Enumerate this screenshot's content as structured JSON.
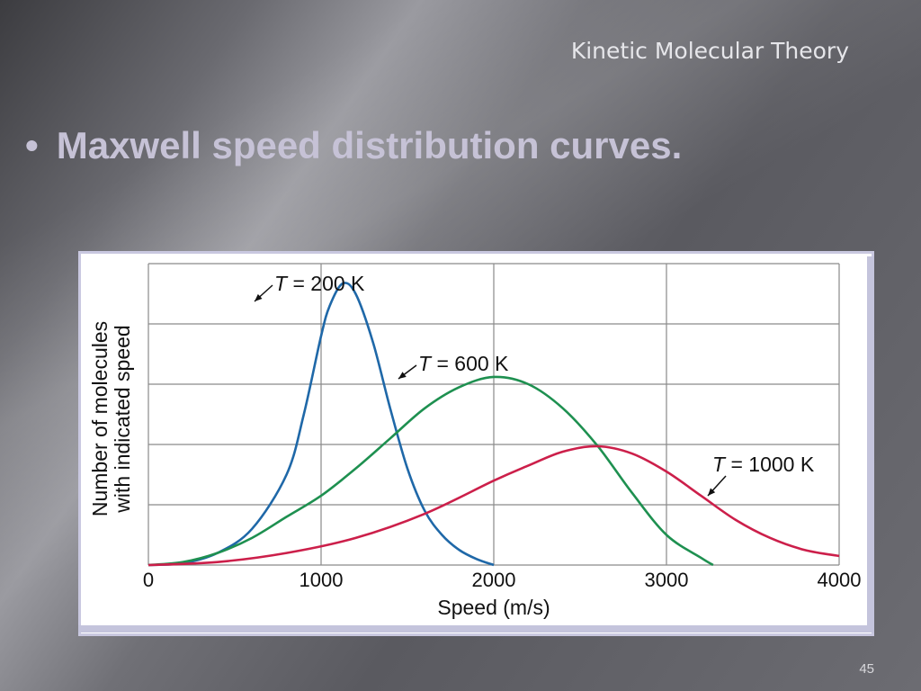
{
  "slide": {
    "title": "Kinetic Molecular Theory",
    "bullet": "Maxwell speed distribution curves.",
    "page_number": "45"
  },
  "chart_data": {
    "type": "line",
    "title": "",
    "xlabel": "Speed (m/s)",
    "ylabel_lines": [
      "Number of molecules",
      "with indicated speed"
    ],
    "xlim": [
      0,
      4000
    ],
    "ylim": [
      0,
      5
    ],
    "xticks": [
      0,
      1000,
      2000,
      3000,
      4000
    ],
    "xtick_labels": [
      "0",
      "1000",
      "2000",
      "3000",
      "4000"
    ],
    "yticks": [
      0,
      1,
      2,
      3,
      4,
      5
    ],
    "grid": true,
    "series": [
      {
        "name": "T = 200 K",
        "label_T": "T",
        "label_rest": " = 200 K",
        "color": "#1f68a8",
        "x": [
          0,
          200,
          400,
          600,
          800,
          900,
          1000,
          1050,
          1125,
          1200,
          1300,
          1400,
          1500,
          1600,
          1700,
          1800,
          1900,
          2000
        ],
        "y": [
          0,
          0.03,
          0.2,
          0.6,
          1.5,
          2.5,
          3.8,
          4.3,
          4.67,
          4.5,
          3.7,
          2.6,
          1.6,
          0.9,
          0.5,
          0.25,
          0.1,
          0
        ]
      },
      {
        "name": "T = 600 K",
        "label_T": "T",
        "label_rest": " = 600 K",
        "color": "#1e9050",
        "x": [
          0,
          200,
          400,
          600,
          800,
          1000,
          1200,
          1400,
          1600,
          1800,
          2000,
          2200,
          2400,
          2600,
          2800,
          3000,
          3200,
          3270
        ],
        "y": [
          0,
          0.05,
          0.2,
          0.45,
          0.8,
          1.15,
          1.6,
          2.1,
          2.6,
          2.95,
          3.12,
          3.0,
          2.6,
          1.98,
          1.2,
          0.5,
          0.12,
          0
        ]
      },
      {
        "name": "T = 1000 K",
        "label_T": "T",
        "label_rest": " = 1000 K",
        "color": "#cc1f4a",
        "x": [
          0,
          400,
          800,
          1200,
          1600,
          2000,
          2200,
          2400,
          2600,
          2800,
          3000,
          3200,
          3400,
          3600,
          3800,
          4000
        ],
        "y": [
          0,
          0.05,
          0.2,
          0.45,
          0.85,
          1.4,
          1.65,
          1.88,
          1.97,
          1.85,
          1.55,
          1.15,
          0.75,
          0.45,
          0.25,
          0.15
        ]
      }
    ]
  }
}
